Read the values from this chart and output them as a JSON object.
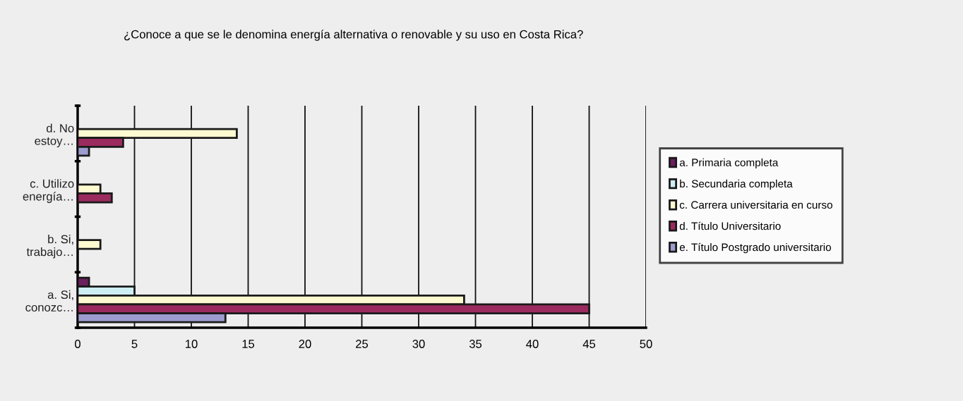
{
  "chart_data": {
    "type": "bar",
    "orientation": "horizontal",
    "title": "¿Conoce a que se le denomina energía alternativa o renovable y su uso en Costa Rica?",
    "categories": [
      "d. No\nestoy…",
      "c. Utilizo\nenergía…",
      "b. Si,\ntrabajo…",
      "a. Si,\nconozc…"
    ],
    "series": [
      {
        "name": "a. Primaria completa",
        "color": "#6b1f5e",
        "values": [
          0,
          0,
          0,
          1
        ]
      },
      {
        "name": "b. Secundaria completa",
        "color": "#cdeef3",
        "values": [
          0,
          0,
          0,
          5
        ]
      },
      {
        "name": "c. Carrera universitaria en curso",
        "color": "#fdfad0",
        "values": [
          14,
          2,
          2,
          34
        ]
      },
      {
        "name": "d. Título Universitario",
        "color": "#9b2b5e",
        "values": [
          4,
          3,
          0,
          45
        ]
      },
      {
        "name": "e. Título Postgrado universitario",
        "color": "#9c9ccf",
        "values": [
          1,
          0,
          0,
          13
        ]
      }
    ],
    "xlim": [
      0,
      50
    ],
    "xticks": [
      0,
      5,
      10,
      15,
      20,
      25,
      30,
      35,
      40,
      45,
      50
    ],
    "grid": "x",
    "legend": "right"
  }
}
